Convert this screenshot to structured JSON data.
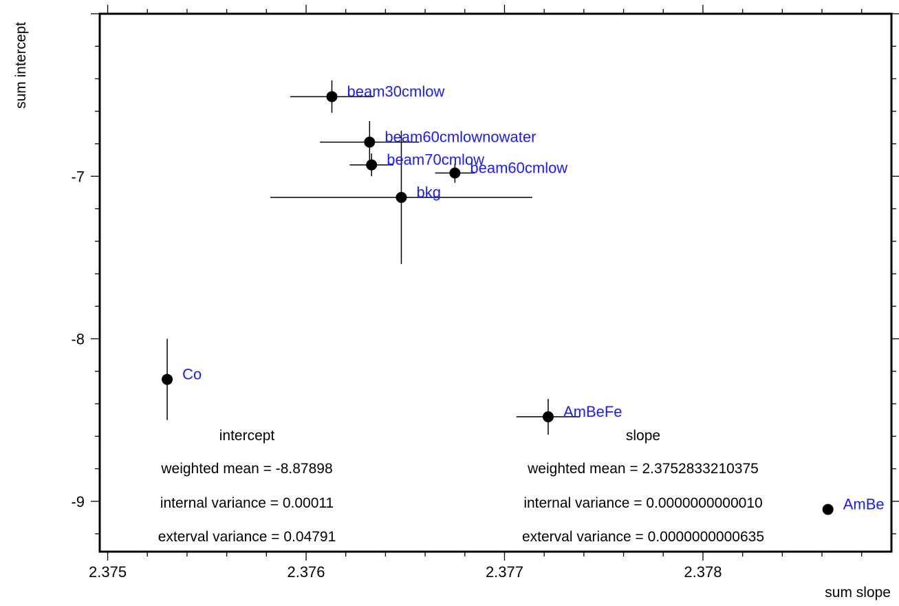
{
  "chart_data": {
    "type": "scatter",
    "xlabel": "sum slope",
    "ylabel": "sum intercept",
    "xlim": [
      2.37496,
      2.37895
    ],
    "ylim": [
      -9.31,
      -6.0
    ],
    "xticks": [
      2.375,
      2.376,
      2.377,
      2.378
    ],
    "xtick_labels": [
      "2.375",
      "2.376",
      "2.377",
      "2.378"
    ],
    "yticks": [
      -7,
      -8,
      -9
    ],
    "ytick_labels": [
      "-7",
      "-8",
      "-9"
    ],
    "grid": false,
    "points": [
      {
        "label": "beam30cmlow",
        "x": 2.37613,
        "y": -6.51,
        "xerr": 0.00021,
        "yerr": 0.1
      },
      {
        "label": "beam60cmlownowater",
        "x": 2.37632,
        "y": -6.79,
        "xerr": 0.00025,
        "yerr": 0.13
      },
      {
        "label": "beam70cmlow",
        "x": 2.37633,
        "y": -6.93,
        "xerr": 0.00011,
        "yerr": 0.07
      },
      {
        "label": "beam60cmlow",
        "x": 2.37675,
        "y": -6.98,
        "xerr": 0.0001,
        "yerr": 0.06
      },
      {
        "label": "bkg",
        "x": 2.37648,
        "y": -7.13,
        "xerr": 0.00066,
        "yerr": 0.41
      },
      {
        "label": "Co",
        "x": 2.3753,
        "y": -8.25,
        "xerr": 0.0,
        "yerr": 0.25
      },
      {
        "label": "AmBeFe",
        "x": 2.37722,
        "y": -8.48,
        "xerr": 0.00016,
        "yerr": 0.11
      },
      {
        "label": "AmBe",
        "x": 2.37863,
        "y": -9.05,
        "xerr": 0.0,
        "yerr": 0.0
      }
    ],
    "annotations": {
      "intercept": {
        "header": "intercept",
        "lines": [
          "weighted mean = -8.87898",
          "internal variance = 0.00011",
          "exterval variance = 0.04791"
        ]
      },
      "slope": {
        "header": "slope",
        "lines": [
          "weighted mean = 2.3752833210375",
          "internal variance = 0.0000000000010",
          "exterval variance = 0.0000000000635"
        ]
      }
    },
    "colors": {
      "marker": "#000000",
      "label": "#1a1aff",
      "frame": "#000000"
    }
  }
}
